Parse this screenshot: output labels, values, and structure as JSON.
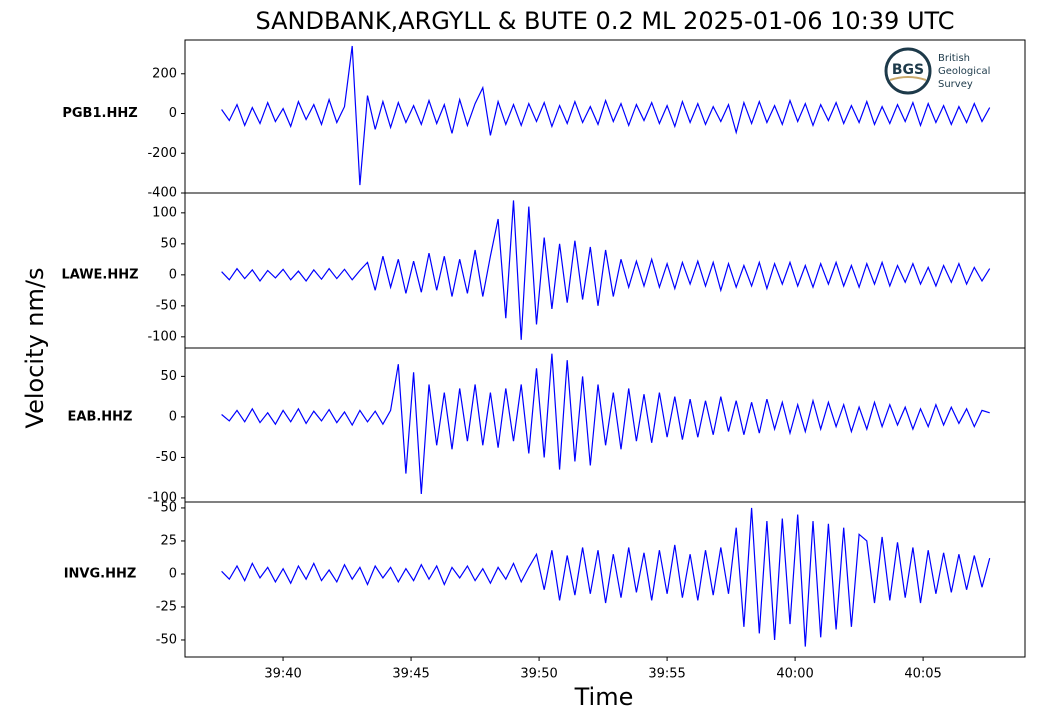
{
  "chart_data": {
    "type": "line",
    "title": "SANDBANK,ARGYLL & BUTE 0.2 ML   2025-01-06 10:39 UTC",
    "xlabel": "Time",
    "ylabel": "Velocity nm/s",
    "xlim": [
      36.17,
      68.98
    ],
    "xticks": [
      {
        "value": 40,
        "label": "39:40"
      },
      {
        "value": 45,
        "label": "39:45"
      },
      {
        "value": 50,
        "label": "39:50"
      },
      {
        "value": 55,
        "label": "39:55"
      },
      {
        "value": 60,
        "label": "40:00"
      },
      {
        "value": 65,
        "label": "40:05"
      }
    ],
    "x": [
      37.6,
      37.9,
      38.2,
      38.5,
      38.8,
      39.1,
      39.4,
      39.7,
      40,
      40.3,
      40.6,
      40.9,
      41.2,
      41.5,
      41.8,
      42.1,
      42.4,
      42.7,
      43,
      43.3,
      43.6,
      43.9,
      44.2,
      44.5,
      44.8,
      45.1,
      45.4,
      45.7,
      46,
      46.3,
      46.6,
      46.9,
      47.2,
      47.5,
      47.8,
      48.1,
      48.4,
      48.7,
      49,
      49.3,
      49.6,
      49.9,
      50.2,
      50.5,
      50.8,
      51.1,
      51.4,
      51.7,
      52,
      52.3,
      52.6,
      52.9,
      53.2,
      53.5,
      53.8,
      54.1,
      54.4,
      54.7,
      55,
      55.3,
      55.6,
      55.9,
      56.2,
      56.5,
      56.8,
      57.1,
      57.4,
      57.7,
      58,
      58.3,
      58.6,
      58.9,
      59.2,
      59.5,
      59.8,
      60.1,
      60.4,
      60.7,
      61,
      61.3,
      61.6,
      61.9,
      62.2,
      62.5,
      62.8,
      63.1,
      63.4,
      63.7,
      64,
      64.3,
      64.6,
      64.9,
      65.2,
      65.5,
      65.8,
      66.1,
      66.4,
      66.7,
      67,
      67.3,
      67.6
    ],
    "panels": [
      {
        "name": "PGB1.HHZ",
        "color": "#0000ff",
        "ylim": [
          -400,
          370
        ],
        "yticks": [
          -400,
          -200,
          0,
          200
        ],
        "values": [
          20,
          -35,
          45,
          -60,
          30,
          -50,
          55,
          -40,
          25,
          -65,
          60,
          -30,
          45,
          -55,
          70,
          -45,
          35,
          340,
          -360,
          90,
          -80,
          60,
          -70,
          55,
          -45,
          40,
          -55,
          65,
          -50,
          45,
          -100,
          70,
          -60,
          50,
          130,
          -110,
          60,
          -55,
          45,
          -60,
          50,
          -40,
          55,
          -65,
          40,
          -50,
          60,
          -45,
          35,
          -55,
          65,
          -40,
          50,
          -60,
          45,
          -35,
          55,
          -50,
          40,
          -65,
          60,
          -45,
          50,
          -55,
          35,
          -40,
          45,
          -95,
          55,
          -50,
          60,
          -45,
          40,
          -55,
          65,
          -40,
          50,
          -60,
          45,
          -35,
          55,
          -50,
          40,
          -45,
          60,
          -55,
          35,
          -50,
          45,
          -40,
          55,
          -60,
          50,
          -45,
          40,
          -55,
          35,
          -45,
          50,
          -40,
          30
        ]
      },
      {
        "name": "LAWE.HHZ",
        "color": "#0000ff",
        "ylim": [
          -118,
          132
        ],
        "yticks": [
          -100,
          -50,
          0,
          50,
          100
        ],
        "values": [
          5,
          -8,
          10,
          -6,
          8,
          -10,
          7,
          -5,
          9,
          -8,
          6,
          -10,
          8,
          -7,
          10,
          -6,
          9,
          -8,
          7,
          20,
          -25,
          30,
          -20,
          25,
          -30,
          22,
          -28,
          35,
          -25,
          30,
          -35,
          25,
          -30,
          40,
          -35,
          30,
          90,
          -70,
          120,
          -105,
          110,
          -80,
          60,
          -55,
          50,
          -45,
          55,
          -40,
          45,
          -50,
          40,
          -35,
          25,
          -20,
          22,
          -18,
          25,
          -20,
          18,
          -22,
          20,
          -15,
          22,
          -18,
          20,
          -25,
          18,
          -20,
          15,
          -18,
          20,
          -22,
          18,
          -15,
          20,
          -18,
          15,
          -20,
          18,
          -15,
          20,
          -18,
          15,
          -20,
          18,
          -15,
          20,
          -18,
          15,
          -12,
          18,
          -15,
          12,
          -18,
          15,
          -12,
          18,
          -15,
          12,
          -10,
          10
        ]
      },
      {
        "name": "EAB.HHZ",
        "color": "#0000ff",
        "ylim": [
          -105,
          85
        ],
        "yticks": [
          -100,
          -50,
          0,
          50
        ],
        "values": [
          3,
          -5,
          8,
          -6,
          10,
          -7,
          5,
          -9,
          8,
          -6,
          10,
          -8,
          7,
          -5,
          9,
          -7,
          6,
          -10,
          8,
          -6,
          7,
          -9,
          8,
          65,
          -70,
          55,
          -95,
          40,
          -35,
          30,
          -40,
          35,
          -30,
          40,
          -35,
          30,
          -38,
          35,
          -30,
          40,
          -45,
          60,
          -50,
          78,
          -65,
          70,
          -55,
          50,
          -60,
          40,
          -35,
          30,
          -40,
          35,
          -30,
          28,
          -32,
          30,
          -25,
          25,
          -28,
          22,
          -25,
          20,
          -22,
          25,
          -18,
          20,
          -22,
          18,
          -20,
          22,
          -15,
          18,
          -20,
          15,
          -18,
          20,
          -15,
          18,
          -12,
          15,
          -18,
          12,
          -15,
          18,
          -12,
          15,
          -10,
          12,
          -15,
          10,
          -12,
          15,
          -10,
          12,
          -8,
          10,
          -12,
          8,
          5
        ]
      },
      {
        "name": "INVG.HHZ",
        "color": "#0000ff",
        "ylim": [
          -62.9,
          54.5
        ],
        "yticks": [
          -50,
          -25,
          0,
          25,
          50
        ],
        "values": [
          2,
          -4,
          6,
          -5,
          8,
          -3,
          5,
          -6,
          4,
          -7,
          6,
          -4,
          8,
          -5,
          3,
          -6,
          7,
          -4,
          5,
          -8,
          6,
          -3,
          5,
          -6,
          4,
          -5,
          7,
          -4,
          6,
          -8,
          5,
          -3,
          6,
          -5,
          4,
          -7,
          5,
          -4,
          8,
          -6,
          5,
          15,
          -12,
          18,
          -20,
          14,
          -16,
          20,
          -15,
          18,
          -22,
          15,
          -18,
          20,
          -14,
          16,
          -20,
          18,
          -15,
          22,
          -18,
          15,
          -20,
          18,
          -16,
          20,
          -15,
          35,
          -40,
          50,
          -45,
          40,
          -50,
          42,
          -38,
          45,
          -55,
          40,
          -48,
          38,
          -42,
          35,
          -40,
          30,
          25,
          -22,
          28,
          -20,
          24,
          -18,
          20,
          -22,
          18,
          -15,
          16,
          -14,
          15,
          -12,
          14,
          -10,
          12
        ]
      }
    ]
  },
  "logo": {
    "abbr": "BGS",
    "name": [
      "British",
      "Geological",
      "Survey"
    ]
  }
}
